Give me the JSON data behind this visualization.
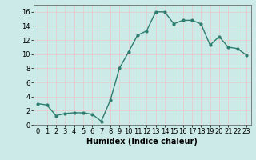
{
  "x": [
    0,
    1,
    2,
    3,
    4,
    5,
    6,
    7,
    8,
    9,
    10,
    11,
    12,
    13,
    14,
    15,
    16,
    17,
    18,
    19,
    20,
    21,
    22,
    23
  ],
  "y": [
    3.0,
    2.8,
    1.3,
    1.6,
    1.7,
    1.7,
    1.5,
    0.5,
    3.5,
    8.0,
    10.3,
    12.7,
    13.3,
    16.0,
    16.0,
    14.3,
    14.8,
    14.8,
    14.3,
    11.3,
    12.5,
    11.0,
    10.8,
    9.9
  ],
  "line_color": "#2e7d6e",
  "marker": "o",
  "marker_size": 2,
  "linewidth": 1.0,
  "background_color": "#cceae7",
  "grid_color": "#e8c8c8",
  "xlabel": "Humidex (Indice chaleur)",
  "xlabel_fontsize": 7,
  "ylim": [
    0,
    17
  ],
  "xlim": [
    -0.5,
    23.5
  ],
  "yticks": [
    0,
    2,
    4,
    6,
    8,
    10,
    12,
    14,
    16
  ],
  "xtick_labels": [
    "0",
    "1",
    "2",
    "3",
    "4",
    "5",
    "6",
    "7",
    "8",
    "9",
    "10",
    "11",
    "12",
    "13",
    "14",
    "15",
    "16",
    "17",
    "18",
    "19",
    "20",
    "21",
    "22",
    "23"
  ],
  "tick_fontsize": 6,
  "fig_width": 3.2,
  "fig_height": 2.0,
  "dpi": 100
}
